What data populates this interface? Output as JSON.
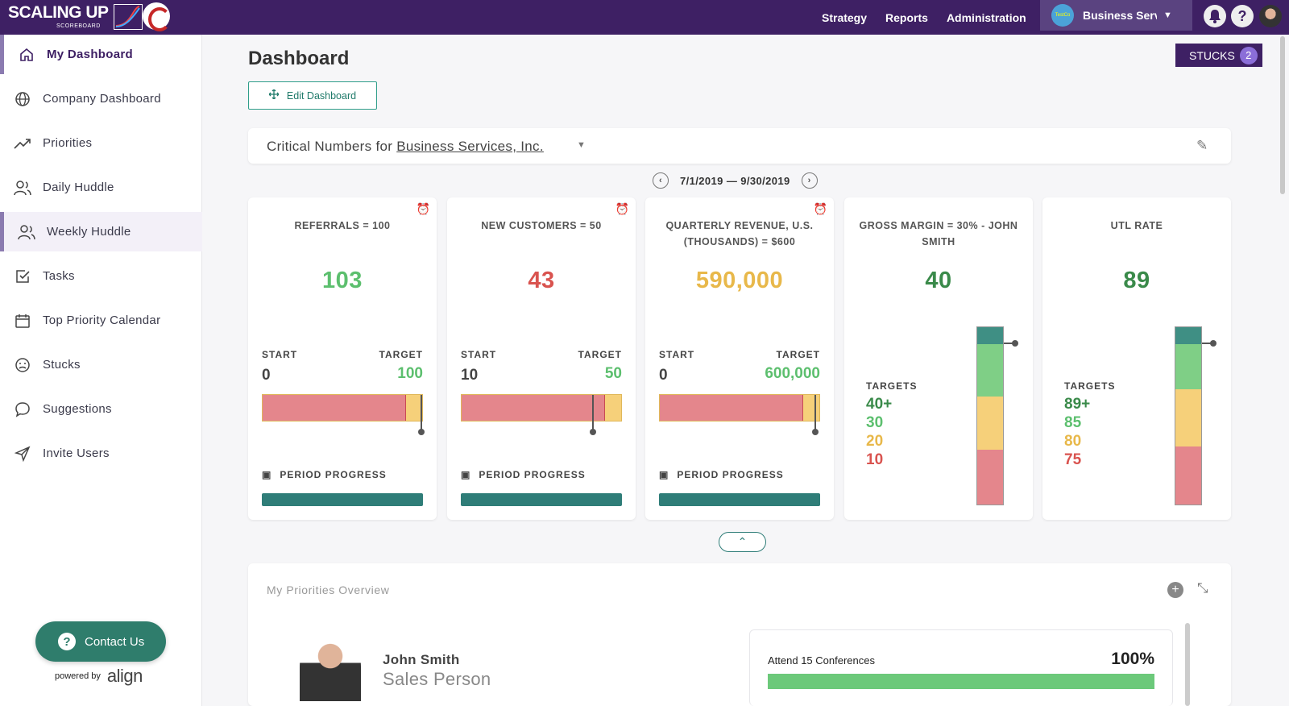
{
  "topbar": {
    "logo": "SCALING UP",
    "logo_sub": "SCOREBOARD",
    "nav": [
      "Strategy",
      "Reports",
      "Administration"
    ],
    "business_selector": {
      "avatar_text": "TestCo",
      "name": "Business Services, Inc."
    },
    "icons": [
      "bell-icon",
      "help-icon",
      "user-avatar"
    ],
    "help_label": "?"
  },
  "sidebar": {
    "items": [
      {
        "label": "My Dashboard",
        "icon": "home-icon"
      },
      {
        "label": "Company Dashboard",
        "icon": "globe-icon"
      },
      {
        "label": "Priorities",
        "icon": "trend-icon"
      },
      {
        "label": "Daily Huddle",
        "icon": "users-icon"
      },
      {
        "label": "Weekly Huddle",
        "icon": "users-icon"
      },
      {
        "label": "Tasks",
        "icon": "check-square-icon"
      },
      {
        "label": "Top Priority Calendar",
        "icon": "calendar-icon"
      },
      {
        "label": "Stucks",
        "icon": "frown-icon"
      },
      {
        "label": "Suggestions",
        "icon": "chat-icon"
      },
      {
        "label": "Invite Users",
        "icon": "send-icon"
      }
    ],
    "contact": "Contact Us",
    "powered_by": "powered by",
    "powered_brand": "align"
  },
  "main": {
    "title": "Dashboard",
    "stucks_label": "STUCKS",
    "stucks_count": "2",
    "edit_dashboard": "Edit Dashboard",
    "critical_prefix": "Critical Numbers for",
    "critical_company": "Business Services, Inc.",
    "period": "7/1/2019 — 9/30/2019",
    "collapse_glyph": "⌃"
  },
  "cards": [
    {
      "title": "REFERRALS = 100",
      "value": "103",
      "value_color": "#5cbf6e",
      "start_label": "START",
      "target_label": "TARGET",
      "start": "0",
      "target": "100",
      "fill_fraction": 0.9,
      "marker_fraction": 1.0,
      "progress_label": "PERIOD PROGRESS",
      "alarm": true
    },
    {
      "title": "NEW CUSTOMERS = 50",
      "value": "43",
      "value_color": "#d9534f",
      "start_label": "START",
      "target_label": "TARGET",
      "start": "10",
      "target": "50",
      "fill_fraction": 0.9,
      "marker_fraction": 0.83,
      "progress_label": "PERIOD PROGRESS",
      "alarm": true
    },
    {
      "title": "QUARTERLY REVENUE, U.S. (THOUSANDS) = $600",
      "value": "590,000",
      "value_color": "#e8b84a",
      "start_label": "START",
      "target_label": "TARGET",
      "start": "0",
      "target": "600,000",
      "fill_fraction": 0.9,
      "marker_fraction": 0.98,
      "progress_label": "PERIOD PROGRESS",
      "alarm": true
    },
    {
      "title": "GROSS MARGIN = 30% - JOHN SMITH",
      "value": "40",
      "value_color": "#3a8a4a",
      "targets_label": "TARGETS",
      "targets": [
        "40+",
        "30",
        "20",
        "10"
      ]
    },
    {
      "title": "UTL RATE",
      "value": "89",
      "value_color": "#3a8a4a",
      "targets_label": "TARGETS",
      "targets": [
        "89+",
        "85",
        "80",
        "75"
      ]
    }
  ],
  "colors": {
    "dark_green": "#3a8a4a",
    "green": "#5cbf6e",
    "yellow": "#e8b84a",
    "red": "#d9534f"
  },
  "priorities": {
    "title": "My Priorities Overview",
    "person_name": "John Smith",
    "person_role": "Sales Person",
    "item_label": "Attend 15 Conferences",
    "item_percent": "100%",
    "item_progress": 1.0
  }
}
